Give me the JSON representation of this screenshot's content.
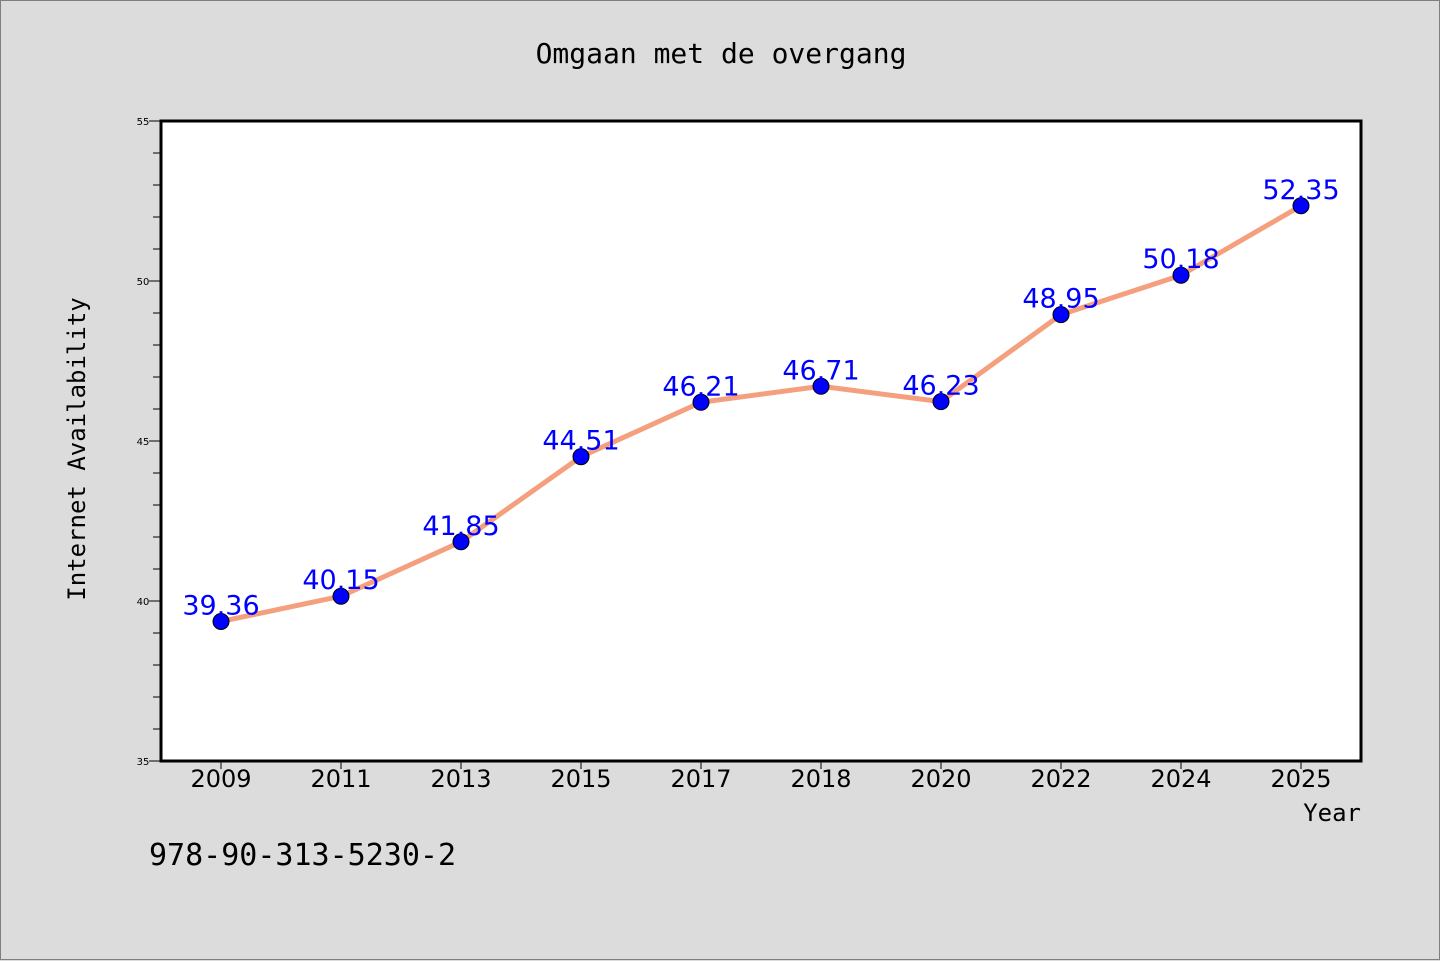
{
  "chart_data": {
    "type": "line",
    "title": "Omgaan met de overgang",
    "xlabel": "Year",
    "ylabel": "Internet Availability",
    "categories": [
      "2009",
      "2011",
      "2013",
      "2015",
      "2017",
      "2018",
      "2020",
      "2022",
      "2024",
      "2025"
    ],
    "series": [
      {
        "values": [
          39.36,
          40.15,
          41.85,
          44.51,
          46.21,
          46.71,
          46.23,
          48.95,
          50.18,
          52.35
        ],
        "labels": [
          "39.36",
          "40.15",
          "41.85",
          "44.51",
          "46.21",
          "46.71",
          "46.23",
          "48.95",
          "50.18",
          "52.35"
        ],
        "line_color": "#f4a07f",
        "marker_color": "#0000ff"
      }
    ],
    "ylim": [
      35,
      55
    ],
    "yticks": [
      "35",
      "40",
      "45",
      "50",
      "55"
    ],
    "grid": false,
    "legend": "none",
    "data_label_color": "#0000ff"
  },
  "annotation": "978-90-313-5230-2"
}
